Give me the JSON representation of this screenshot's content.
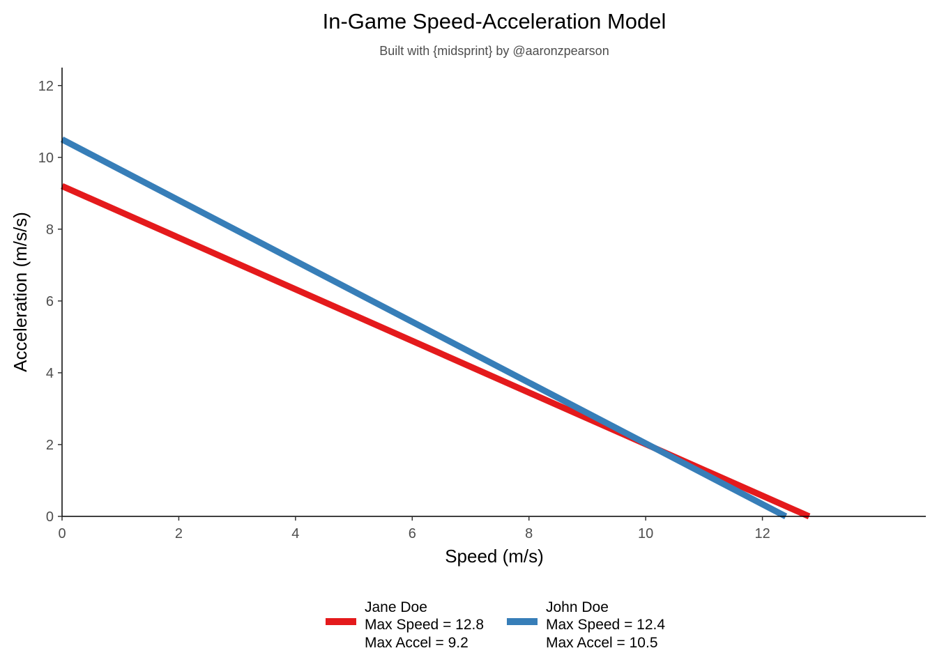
{
  "chart_data": {
    "type": "line",
    "title": "In-Game Speed-Acceleration Model",
    "subtitle": "Built with {midsprint} by @aaronzpearson",
    "xlabel": "Speed (m/s)",
    "ylabel": "Acceleration (m/s/s)",
    "xlim": [
      0,
      14.8
    ],
    "ylim": [
      0,
      12.5
    ],
    "xticks": [
      0,
      2,
      4,
      6,
      8,
      10,
      12
    ],
    "yticks": [
      0,
      2,
      4,
      6,
      8,
      10,
      12
    ],
    "grid": false,
    "legend_position": "bottom",
    "series": [
      {
        "name": "Jane Doe",
        "legend_lines": [
          "Jane Doe",
          "Max Speed = 12.8",
          "Max Accel = 9.2"
        ],
        "color": "#e41a1c",
        "x": [
          0,
          12.8
        ],
        "y": [
          9.2,
          0
        ]
      },
      {
        "name": "John Doe",
        "legend_lines": [
          "John Doe",
          "Max Speed = 12.4",
          "Max Accel = 10.5"
        ],
        "color": "#377eb8",
        "x": [
          0,
          12.4
        ],
        "y": [
          10.5,
          0
        ]
      }
    ]
  }
}
